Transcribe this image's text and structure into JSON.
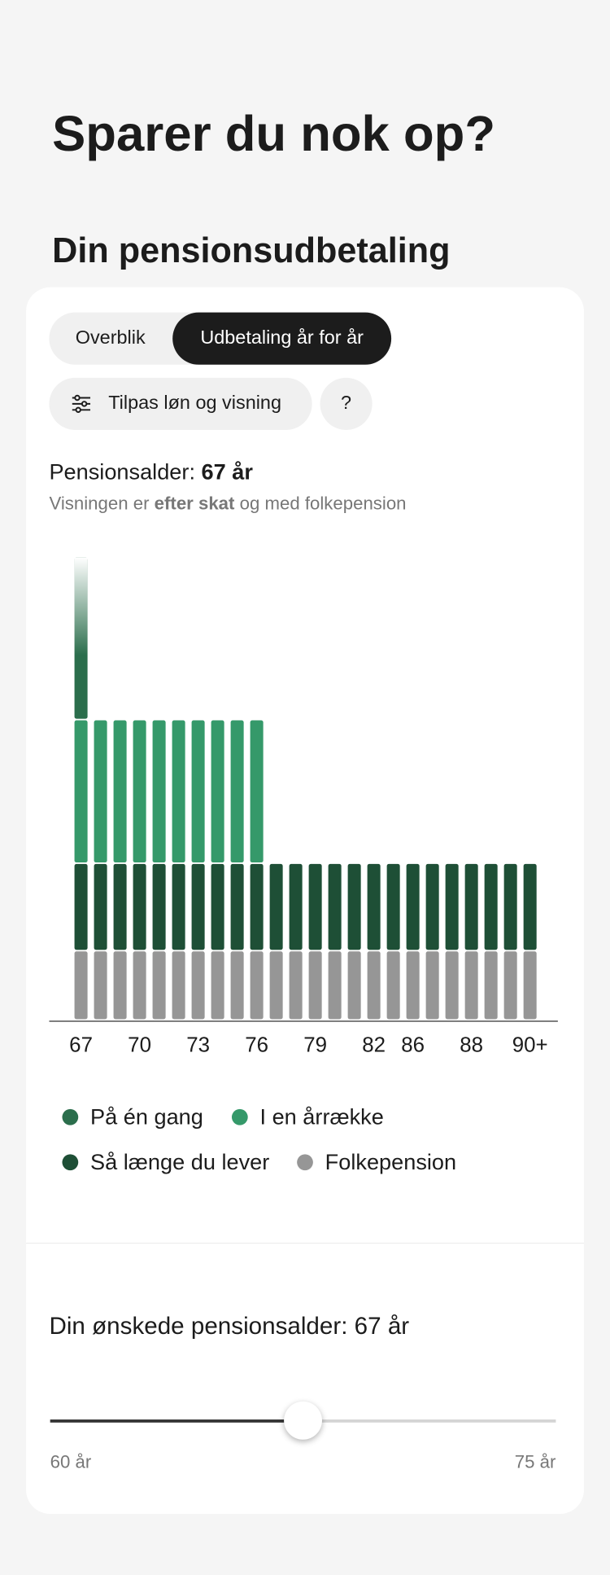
{
  "header": {
    "title": "Sparer du nok op?",
    "subtitle": "Din pensionsudbetaling"
  },
  "tabs": [
    "Overblik",
    "Udbetaling år for år"
  ],
  "buttons": {
    "customize": "Tilpas løn og visning",
    "help": "?"
  },
  "info": {
    "label": "Pensionsalder:",
    "value": "67 år",
    "note": [
      "Visningen er",
      "efter skat",
      "og med folkepension"
    ]
  },
  "chart_data": {
    "type": "bar",
    "stacked": true,
    "categories": [
      "67",
      null,
      null,
      "70",
      null,
      null,
      "73",
      null,
      null,
      "76",
      null,
      null,
      "79",
      null,
      null,
      "82",
      null,
      "86",
      null,
      null,
      "88",
      null,
      null,
      "90+"
    ],
    "series": [
      {
        "name": "På én gang",
        "color": "#2b6e4c",
        "values": [
          162,
          null,
          null,
          null,
          null,
          null,
          null,
          null,
          null,
          null,
          null,
          null,
          null,
          null,
          null,
          null,
          null,
          null,
          null,
          null,
          null,
          null,
          null,
          null
        ]
      },
      {
        "name": "I en årrække",
        "color": "#35996a",
        "values": [
          143,
          143,
          143,
          143,
          143,
          143,
          143,
          143,
          143,
          143,
          null,
          null,
          null,
          null,
          null,
          null,
          null,
          null,
          null,
          null,
          null,
          null,
          null,
          null
        ]
      },
      {
        "name": "Så længe du lever",
        "color": "#1e4f36",
        "values": [
          87,
          87,
          87,
          87,
          87,
          87,
          87,
          87,
          87,
          87,
          87,
          87,
          87,
          87,
          87,
          87,
          87,
          87,
          87,
          87,
          87,
          87,
          87,
          87
        ]
      },
      {
        "name": "Folkepension",
        "color": "#969696",
        "values": [
          69,
          69,
          69,
          69,
          69,
          69,
          69,
          69,
          69,
          69,
          69,
          69,
          69,
          69,
          69,
          69,
          69,
          69,
          69,
          69,
          69,
          69,
          69,
          69
        ]
      }
    ],
    "ylim": [
      0,
      476
    ]
  },
  "slider": {
    "label": "Din ønskede pensionsalder: 67 år",
    "min_label": "60 år",
    "max_label": "75 år"
  }
}
